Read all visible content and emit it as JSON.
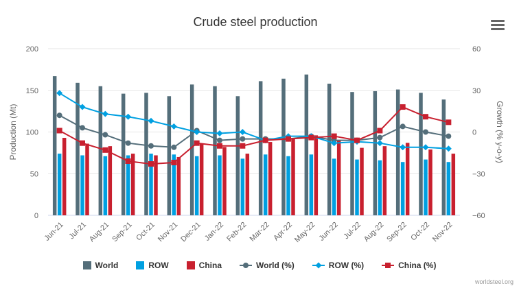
{
  "header": {
    "title": "Crude steel production"
  },
  "menu": {
    "icon": "hamburger-menu-icon"
  },
  "credits": "worldsteel.org",
  "colors": {
    "world": "#546e7a",
    "row": "#00a0e1",
    "china": "#c8202f",
    "grid": "#e6e6e6",
    "axis_text": "#666666"
  },
  "chart_data": {
    "type": "bar",
    "title": "Crude steel production",
    "categories": [
      "Jun-21",
      "Jul-21",
      "Aug-21",
      "Sep-21",
      "Oct-21",
      "Nov-21",
      "Dec-21",
      "Jan-22",
      "Feb-22",
      "Mar-22",
      "Apr-22",
      "May-22",
      "Jun-22",
      "Jul-22",
      "Aug-22",
      "Sep-22",
      "Oct-22",
      "Nov-22"
    ],
    "ylabel_left": "Production (Mt)",
    "ylabel_right": "Growth (% y-o-y)",
    "ylim_left": [
      0,
      200
    ],
    "yticks_left": [
      "0",
      "50",
      "100",
      "150",
      "200"
    ],
    "ylim_right": [
      -60,
      60
    ],
    "yticks_right": [
      "−60",
      "−30",
      "0",
      "30",
      "60"
    ],
    "grid": true,
    "legend_position": "bottom",
    "series": [
      {
        "name": "World",
        "type": "column",
        "axis": "left",
        "color": "#546e7a",
        "values": [
          167,
          159,
          155,
          146,
          147,
          143,
          157,
          155,
          143,
          161,
          164,
          169,
          158,
          148,
          149,
          151,
          147,
          139
        ]
      },
      {
        "name": "ROW",
        "type": "column",
        "axis": "left",
        "color": "#00a0e1",
        "values": [
          74,
          72,
          71,
          72,
          74,
          73,
          71,
          72,
          68,
          73,
          71,
          73,
          68,
          67,
          66,
          64,
          67,
          64
        ]
      },
      {
        "name": "China",
        "type": "column",
        "axis": "left",
        "color": "#c8202f",
        "values": [
          93,
          86,
          83,
          74,
          72,
          70,
          86,
          82,
          74,
          88,
          92,
          96,
          90,
          81,
          83,
          87,
          79,
          74
        ]
      },
      {
        "name": "World (%)",
        "type": "line",
        "axis": "right",
        "color": "#546e7a",
        "marker": "circle",
        "values": [
          12,
          3,
          -2,
          -8,
          -10,
          -11,
          1,
          -6,
          -5,
          -5,
          -5,
          -3,
          -6,
          -6,
          -4,
          4,
          0,
          -3
        ]
      },
      {
        "name": "ROW (%)",
        "type": "line",
        "axis": "right",
        "color": "#00a0e1",
        "marker": "diamond",
        "values": [
          28,
          18,
          13,
          11,
          8,
          4,
          0,
          -1,
          0,
          -6,
          -3,
          -3,
          -8,
          -7,
          -8,
          -11,
          -11,
          -12
        ]
      },
      {
        "name": "China (%)",
        "type": "line",
        "axis": "right",
        "color": "#c8202f",
        "marker": "square",
        "values": [
          1,
          -8,
          -13,
          -21,
          -23,
          -22,
          -8,
          -10,
          -10,
          -6,
          -5,
          -4,
          -3,
          -6,
          1,
          18,
          11,
          7
        ]
      }
    ]
  }
}
